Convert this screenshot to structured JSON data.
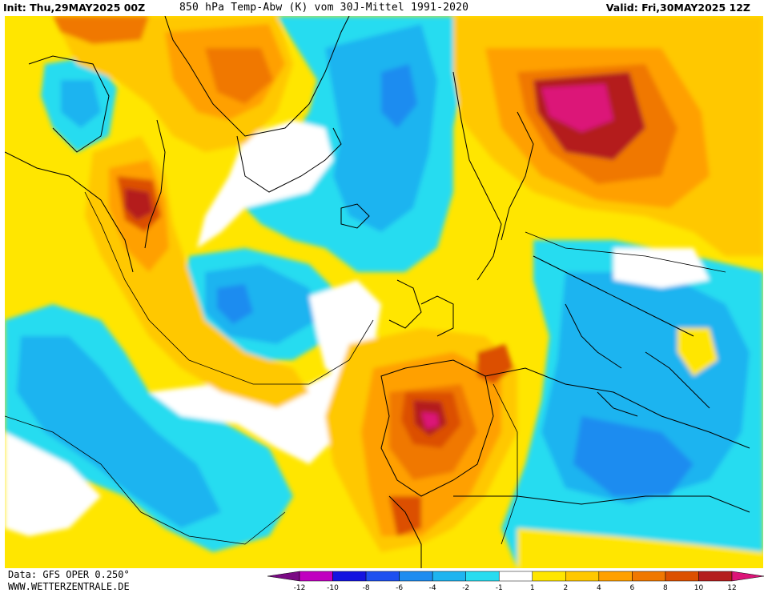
{
  "header": {
    "init_label": "Init: Thu,29MAY2025 00Z",
    "title": "850 hPa Temp-Abw (K) vom 30J-Mittel 1991-2020",
    "valid_label": "Valid: Fri,30MAY2025 12Z"
  },
  "footer": {
    "data_source": "Data: GFS OPER 0.250°",
    "website": "WWW.WETTERZENTRALE.DE"
  },
  "legend": {
    "ticks": [
      "-12",
      "-10",
      "-8",
      "-6",
      "-4",
      "-2",
      "-1",
      "1",
      "2",
      "4",
      "6",
      "8",
      "10",
      "12"
    ],
    "colors": [
      "#7a0a84",
      "#c000c0",
      "#1414e0",
      "#1e50f0",
      "#1e8cf0",
      "#1eb4f0",
      "#28dcf0",
      "#ffffff",
      "#ffe600",
      "#ffc800",
      "#ffa000",
      "#f07800",
      "#dc5000",
      "#b41e1e",
      "#dc1478"
    ]
  },
  "colors": {
    "background": "#ffffff",
    "coastline": "#000000"
  }
}
